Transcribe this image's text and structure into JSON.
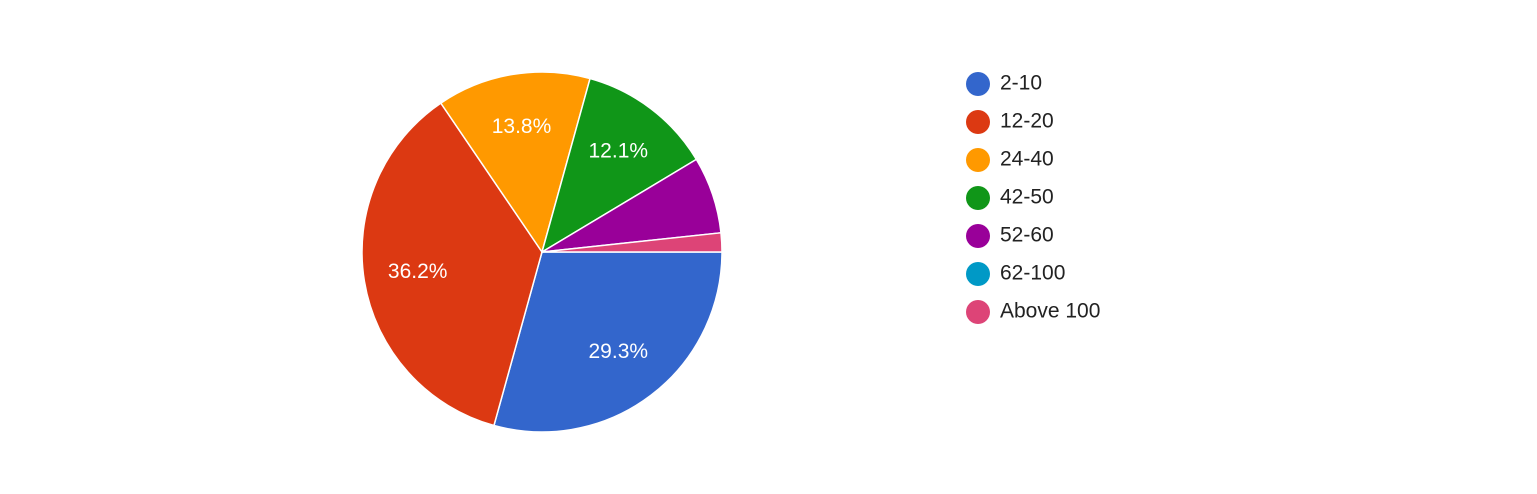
{
  "chart_data": {
    "type": "pie",
    "categories": [
      "2-10",
      "12-20",
      "24-40",
      "42-50",
      "52-60",
      "62-100",
      "Above 100"
    ],
    "values": [
      29.3,
      36.2,
      13.8,
      12.1,
      6.9,
      0,
      1.7
    ],
    "value_labels": [
      "29.3%",
      "36.2%",
      "13.8%",
      "12.1%",
      null,
      null,
      null
    ],
    "colors": [
      "#3366cc",
      "#dc3912",
      "#ff9900",
      "#109618",
      "#990099",
      "#0099c6",
      "#dd4477"
    ],
    "legend": "right"
  }
}
